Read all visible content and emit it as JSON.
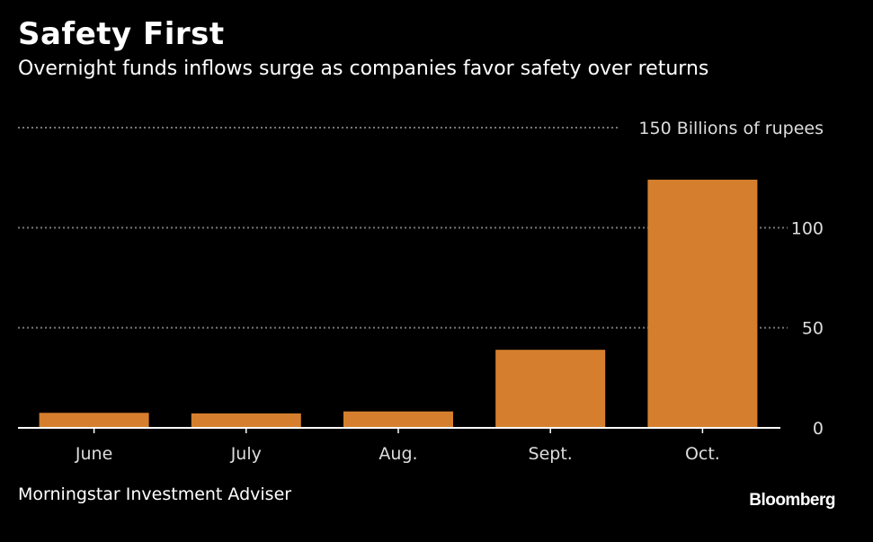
{
  "chart_data": {
    "type": "bar",
    "title": "Safety First",
    "subtitle": "Overnight funds inflows surge as companies favor safety over returns",
    "categories": [
      "June",
      "July",
      "Aug.",
      "Sept.",
      "Oct."
    ],
    "values": [
      7.5,
      7.2,
      8.2,
      39,
      124
    ],
    "ylabel": "Billions of rupees",
    "yticks": [
      0,
      50,
      100,
      150
    ],
    "ytick_labels": [
      "0",
      "50",
      "100",
      "150 Billions of rupees"
    ],
    "ylim": [
      0,
      150
    ],
    "grid": true,
    "bar_color": "#D57F2E",
    "grid_color": "#777777",
    "source": "Morningstar Investment Adviser",
    "brand": "Bloomberg"
  }
}
